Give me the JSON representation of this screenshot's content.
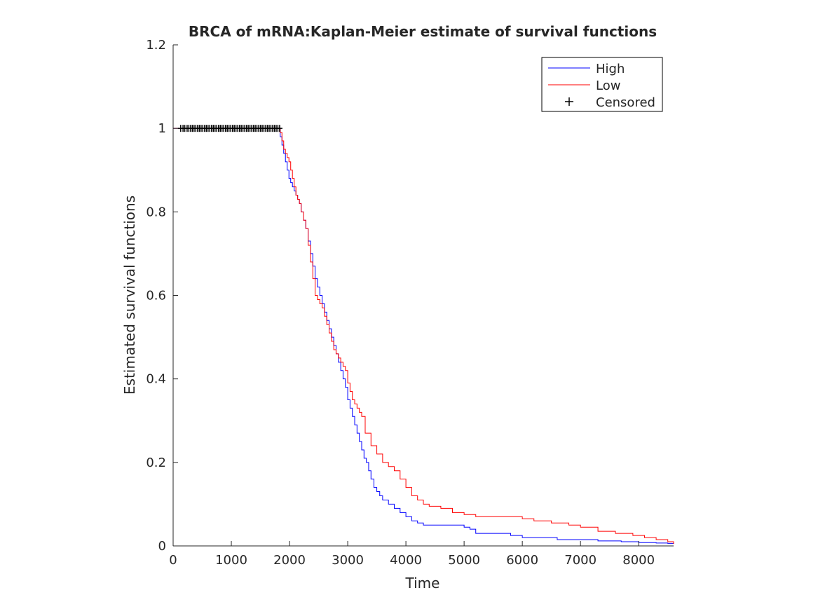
{
  "chart_data": {
    "type": "line",
    "title": "BRCA of mRNA:Kaplan-Meier estimate of survival functions",
    "xlabel": "Time",
    "ylabel": "Estimated survival functions",
    "xlim": [
      0,
      8600
    ],
    "ylim": [
      0,
      1.2
    ],
    "x_ticks": [
      0,
      1000,
      2000,
      3000,
      4000,
      5000,
      6000,
      7000,
      8000
    ],
    "y_ticks": [
      0,
      0.2,
      0.4,
      0.6,
      0.8,
      1,
      1.2
    ],
    "x_tick_labels": [
      "0",
      "1000",
      "2000",
      "3000",
      "4000",
      "5000",
      "6000",
      "7000",
      "8000"
    ],
    "y_tick_labels": [
      "0",
      "0.2",
      "0.4",
      "0.6",
      "0.8",
      "1",
      "1.2"
    ],
    "grid": false,
    "legend": {
      "position": "top-right",
      "entries": [
        "High",
        "Low",
        "Censored"
      ]
    },
    "series": [
      {
        "name": "High",
        "color": "#0000ff",
        "x": [
          0,
          1840,
          1870,
          1900,
          1930,
          1960,
          1990,
          2020,
          2050,
          2080,
          2110,
          2140,
          2170,
          2200,
          2240,
          2280,
          2320,
          2360,
          2400,
          2440,
          2480,
          2520,
          2560,
          2600,
          2640,
          2680,
          2720,
          2760,
          2800,
          2840,
          2880,
          2920,
          2960,
          3000,
          3040,
          3080,
          3120,
          3160,
          3200,
          3240,
          3280,
          3320,
          3360,
          3400,
          3450,
          3500,
          3550,
          3600,
          3700,
          3800,
          3900,
          4000,
          4100,
          4200,
          4300,
          4400,
          4600,
          4800,
          5000,
          5100,
          5200,
          5500,
          5800,
          6000,
          6300,
          6600,
          7000,
          7300,
          7700,
          8000,
          8300,
          8500,
          8600
        ],
        "y": [
          1,
          0.98,
          0.96,
          0.94,
          0.92,
          0.9,
          0.88,
          0.87,
          0.86,
          0.85,
          0.84,
          0.83,
          0.82,
          0.8,
          0.78,
          0.76,
          0.73,
          0.7,
          0.67,
          0.64,
          0.62,
          0.6,
          0.58,
          0.56,
          0.54,
          0.52,
          0.5,
          0.48,
          0.46,
          0.44,
          0.42,
          0.4,
          0.38,
          0.35,
          0.33,
          0.31,
          0.29,
          0.27,
          0.25,
          0.23,
          0.21,
          0.2,
          0.18,
          0.16,
          0.14,
          0.13,
          0.12,
          0.11,
          0.1,
          0.09,
          0.08,
          0.07,
          0.06,
          0.055,
          0.05,
          0.05,
          0.05,
          0.05,
          0.045,
          0.04,
          0.03,
          0.03,
          0.025,
          0.02,
          0.02,
          0.015,
          0.015,
          0.012,
          0.01,
          0.008,
          0.007,
          0.006,
          0.005
        ]
      },
      {
        "name": "Low",
        "color": "#ff0000",
        "x": [
          0,
          1840,
          1870,
          1900,
          1930,
          1960,
          1990,
          2020,
          2050,
          2080,
          2110,
          2140,
          2170,
          2200,
          2240,
          2280,
          2320,
          2360,
          2400,
          2440,
          2480,
          2520,
          2560,
          2600,
          2640,
          2680,
          2720,
          2760,
          2800,
          2840,
          2880,
          2920,
          2960,
          3000,
          3040,
          3080,
          3120,
          3160,
          3200,
          3240,
          3300,
          3400,
          3500,
          3600,
          3700,
          3800,
          3900,
          4000,
          4100,
          4200,
          4300,
          4400,
          4600,
          4800,
          5000,
          5200,
          5500,
          5800,
          6000,
          6200,
          6500,
          6800,
          7000,
          7300,
          7600,
          7900,
          8100,
          8300,
          8500,
          8600
        ],
        "y": [
          1,
          0.99,
          0.97,
          0.95,
          0.94,
          0.93,
          0.92,
          0.9,
          0.88,
          0.86,
          0.84,
          0.83,
          0.82,
          0.8,
          0.78,
          0.76,
          0.72,
          0.68,
          0.64,
          0.6,
          0.59,
          0.58,
          0.57,
          0.55,
          0.53,
          0.51,
          0.49,
          0.47,
          0.46,
          0.45,
          0.44,
          0.43,
          0.42,
          0.39,
          0.37,
          0.35,
          0.34,
          0.33,
          0.32,
          0.31,
          0.27,
          0.24,
          0.22,
          0.2,
          0.19,
          0.18,
          0.16,
          0.14,
          0.12,
          0.11,
          0.1,
          0.095,
          0.09,
          0.08,
          0.075,
          0.07,
          0.07,
          0.07,
          0.065,
          0.06,
          0.055,
          0.05,
          0.045,
          0.035,
          0.03,
          0.025,
          0.02,
          0.015,
          0.01,
          0.005
        ]
      }
    ],
    "censored_marks": {
      "name": "Censored",
      "color": "#000000",
      "y": 1,
      "x": [
        130,
        170,
        200,
        240,
        270,
        300,
        330,
        360,
        390,
        420,
        450,
        480,
        510,
        540,
        570,
        600,
        630,
        660,
        690,
        720,
        750,
        780,
        810,
        840,
        870,
        900,
        930,
        960,
        990,
        1020,
        1050,
        1080,
        1110,
        1140,
        1170,
        1200,
        1230,
        1260,
        1290,
        1320,
        1350,
        1380,
        1410,
        1440,
        1470,
        1500,
        1530,
        1560,
        1590,
        1620,
        1650,
        1680,
        1710,
        1740,
        1770,
        1800,
        1830
      ]
    }
  }
}
